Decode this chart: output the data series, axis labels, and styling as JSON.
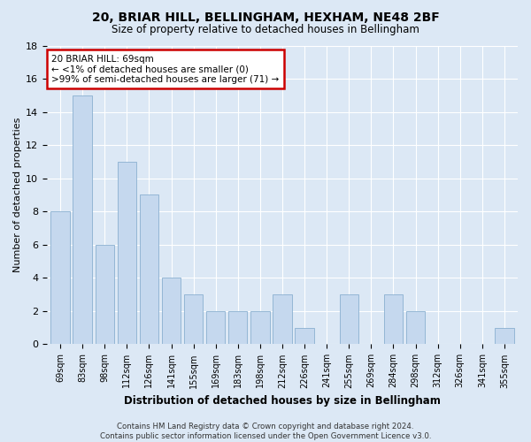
{
  "title": "20, BRIAR HILL, BELLINGHAM, HEXHAM, NE48 2BF",
  "subtitle": "Size of property relative to detached houses in Bellingham",
  "xlabel": "Distribution of detached houses by size in Bellingham",
  "ylabel": "Number of detached properties",
  "categories": [
    "69sqm",
    "83sqm",
    "98sqm",
    "112sqm",
    "126sqm",
    "141sqm",
    "155sqm",
    "169sqm",
    "183sqm",
    "198sqm",
    "212sqm",
    "226sqm",
    "241sqm",
    "255sqm",
    "269sqm",
    "284sqm",
    "298sqm",
    "312sqm",
    "326sqm",
    "341sqm",
    "355sqm"
  ],
  "values": [
    8,
    15,
    6,
    11,
    9,
    4,
    3,
    2,
    2,
    2,
    3,
    1,
    0,
    3,
    0,
    3,
    2,
    0,
    0,
    0,
    1
  ],
  "annotation_text": "20 BRIAR HILL: 69sqm\n← <1% of detached houses are smaller (0)\n>99% of semi-detached houses are larger (71) →",
  "annotation_box_edgecolor": "#cc0000",
  "ylim": [
    0,
    18
  ],
  "yticks": [
    0,
    2,
    4,
    6,
    8,
    10,
    12,
    14,
    16,
    18
  ],
  "footer": "Contains HM Land Registry data © Crown copyright and database right 2024.\nContains public sector information licensed under the Open Government Licence v3.0.",
  "background_color": "#dce8f5",
  "bar_color": "#c5d8ee",
  "bar_edgecolor": "#8ab0d0",
  "grid_color": "#ffffff"
}
